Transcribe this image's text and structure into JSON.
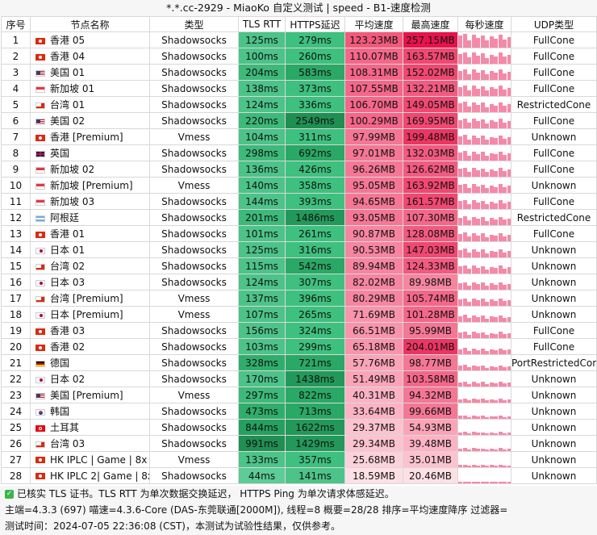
{
  "title": "*.*.cc-2929 - MiaoKo 自定义测试 | speed - B1-速度检测",
  "headers": [
    "序号",
    "节点名称",
    "类型",
    "TLS RTT",
    "HTTPS延迟",
    "平均速度",
    "最高速度",
    "每秒速度",
    "UDP类型"
  ],
  "rows": [
    {
      "idx": "1",
      "flag": "hk",
      "name": "香港 05",
      "type": "Shadowsocks",
      "tls": "125ms",
      "https": "279ms",
      "avg": "123.23MB",
      "max": "257.15MB",
      "udp": "FullCone",
      "tlsColor": "#4cc389",
      "httpsColor": "#3ec07f",
      "avgColor": "#f2597a",
      "maxColor": "#e8124c"
    },
    {
      "idx": "2",
      "flag": "hk",
      "name": "香港 04",
      "type": "Shadowsocks",
      "tls": "100ms",
      "https": "260ms",
      "avg": "110.07MB",
      "max": "163.57MB",
      "udp": "FullCone",
      "tlsColor": "#4cc389",
      "httpsColor": "#3ec07f",
      "avgColor": "#f4678a",
      "maxColor": "#f04872"
    },
    {
      "idx": "3",
      "flag": "us",
      "name": "美国 01",
      "type": "Shadowsocks",
      "tls": "204ms",
      "https": "583ms",
      "avg": "108.31MB",
      "max": "152.02MB",
      "udp": "FullCone",
      "tlsColor": "#3db97a",
      "httpsColor": "#2aa865",
      "avgColor": "#f4678a",
      "maxColor": "#f04872"
    },
    {
      "idx": "4",
      "flag": "sg",
      "name": "新加坡 01",
      "type": "Shadowsocks",
      "tls": "138ms",
      "https": "373ms",
      "avg": "107.55MB",
      "max": "132.21MB",
      "udp": "FullCone",
      "tlsColor": "#4cc389",
      "httpsColor": "#3ec07f",
      "avgColor": "#f4678a",
      "maxColor": "#f25a80"
    },
    {
      "idx": "5",
      "flag": "tw",
      "name": "台湾 01",
      "type": "Shadowsocks",
      "tls": "124ms",
      "https": "336ms",
      "avg": "106.70MB",
      "max": "149.05MB",
      "udp": "RestrictedCone",
      "tlsColor": "#4cc389",
      "httpsColor": "#3ec07f",
      "avgColor": "#f4678a",
      "maxColor": "#f04872"
    },
    {
      "idx": "6",
      "flag": "us",
      "name": "美国 02",
      "type": "Shadowsocks",
      "tls": "220ms",
      "https": "2549ms",
      "avg": "100.29MB",
      "max": "169.95MB",
      "udp": "FullCone",
      "tlsColor": "#3db97a",
      "httpsColor": "#1f8f52",
      "avgColor": "#f4678a",
      "maxColor": "#f04872"
    },
    {
      "idx": "7",
      "flag": "hk",
      "name": "香港 [Premium]",
      "type": "Vmess",
      "tls": "104ms",
      "https": "311ms",
      "avg": "97.99MB",
      "max": "199.48MB",
      "udp": "Unknown",
      "tlsColor": "#4cc389",
      "httpsColor": "#3ec07f",
      "avgColor": "#f47795",
      "maxColor": "#ec3562"
    },
    {
      "idx": "8",
      "flag": "gb",
      "name": "英国",
      "type": "Shadowsocks",
      "tls": "298ms",
      "https": "692ms",
      "avg": "97.01MB",
      "max": "132.03MB",
      "udp": "FullCone",
      "tlsColor": "#3db97a",
      "httpsColor": "#2aa865",
      "avgColor": "#f47795",
      "maxColor": "#f25a80"
    },
    {
      "idx": "9",
      "flag": "sg",
      "name": "新加坡 02",
      "type": "Shadowsocks",
      "tls": "136ms",
      "https": "426ms",
      "avg": "96.26MB",
      "max": "126.62MB",
      "udp": "FullCone",
      "tlsColor": "#4cc389",
      "httpsColor": "#3ec07f",
      "avgColor": "#f47795",
      "maxColor": "#f25a80"
    },
    {
      "idx": "10",
      "flag": "sg",
      "name": "新加坡 [Premium]",
      "type": "Vmess",
      "tls": "140ms",
      "https": "358ms",
      "avg": "95.05MB",
      "max": "163.92MB",
      "udp": "Unknown",
      "tlsColor": "#4cc389",
      "httpsColor": "#3ec07f",
      "avgColor": "#f47795",
      "maxColor": "#f04872"
    },
    {
      "idx": "11",
      "flag": "sg",
      "name": "新加坡 03",
      "type": "Shadowsocks",
      "tls": "144ms",
      "https": "393ms",
      "avg": "94.65MB",
      "max": "161.57MB",
      "udp": "FullCone",
      "tlsColor": "#4cc389",
      "httpsColor": "#3ec07f",
      "avgColor": "#f47795",
      "maxColor": "#f04872"
    },
    {
      "idx": "12",
      "flag": "ar",
      "name": "阿根廷",
      "type": "Shadowsocks",
      "tls": "201ms",
      "https": "1486ms",
      "avg": "93.05MB",
      "max": "107.30MB",
      "udp": "RestrictedCone",
      "tlsColor": "#3db97a",
      "httpsColor": "#22995a",
      "avgColor": "#f47795",
      "maxColor": "#f4678a"
    },
    {
      "idx": "13",
      "flag": "hk",
      "name": "香港 01",
      "type": "Shadowsocks",
      "tls": "101ms",
      "https": "261ms",
      "avg": "90.87MB",
      "max": "128.08MB",
      "udp": "FullCone",
      "tlsColor": "#4cc389",
      "httpsColor": "#3ec07f",
      "avgColor": "#f685a0",
      "maxColor": "#f25a80"
    },
    {
      "idx": "14",
      "flag": "jp",
      "name": "日本 01",
      "type": "Shadowsocks",
      "tls": "125ms",
      "https": "316ms",
      "avg": "90.53MB",
      "max": "147.03MB",
      "udp": "Unknown",
      "tlsColor": "#4cc389",
      "httpsColor": "#3ec07f",
      "avgColor": "#f685a0",
      "maxColor": "#f04872"
    },
    {
      "idx": "15",
      "flag": "tw",
      "name": "台湾 02",
      "type": "Shadowsocks",
      "tls": "115ms",
      "https": "542ms",
      "avg": "89.94MB",
      "max": "124.33MB",
      "udp": "Unknown",
      "tlsColor": "#4cc389",
      "httpsColor": "#2aa865",
      "avgColor": "#f685a0",
      "maxColor": "#f25a80"
    },
    {
      "idx": "16",
      "flag": "jp",
      "name": "日本 03",
      "type": "Shadowsocks",
      "tls": "124ms",
      "https": "307ms",
      "avg": "82.02MB",
      "max": "89.98MB",
      "udp": "Unknown",
      "tlsColor": "#4cc389",
      "httpsColor": "#3ec07f",
      "avgColor": "#f685a0",
      "maxColor": "#f685a0"
    },
    {
      "idx": "17",
      "flag": "tw",
      "name": "台湾 [Premium]",
      "type": "Vmess",
      "tls": "137ms",
      "https": "396ms",
      "avg": "80.29MB",
      "max": "105.74MB",
      "udp": "Unknown",
      "tlsColor": "#4cc389",
      "httpsColor": "#3ec07f",
      "avgColor": "#f685a0",
      "maxColor": "#f4678a"
    },
    {
      "idx": "18",
      "flag": "jp",
      "name": "日本 [Premium]",
      "type": "Vmess",
      "tls": "107ms",
      "https": "265ms",
      "avg": "71.69MB",
      "max": "101.28MB",
      "udp": "Unknown",
      "tlsColor": "#4cc389",
      "httpsColor": "#3ec07f",
      "avgColor": "#f894ab",
      "maxColor": "#f4678a"
    },
    {
      "idx": "19",
      "flag": "hk",
      "name": "香港 03",
      "type": "Shadowsocks",
      "tls": "156ms",
      "https": "324ms",
      "avg": "66.51MB",
      "max": "95.99MB",
      "udp": "FullCone",
      "tlsColor": "#4cc389",
      "httpsColor": "#3ec07f",
      "avgColor": "#f894ab",
      "maxColor": "#f47795"
    },
    {
      "idx": "20",
      "flag": "hk",
      "name": "香港 02",
      "type": "Shadowsocks",
      "tls": "103ms",
      "https": "299ms",
      "avg": "65.18MB",
      "max": "204.01MB",
      "udp": "FullCone",
      "tlsColor": "#4cc389",
      "httpsColor": "#3ec07f",
      "avgColor": "#f894ab",
      "maxColor": "#ec3562"
    },
    {
      "idx": "21",
      "flag": "de",
      "name": "德国",
      "type": "Shadowsocks",
      "tls": "328ms",
      "https": "721ms",
      "avg": "57.76MB",
      "max": "98.77MB",
      "udp": "PortRestrictedCone",
      "tlsColor": "#2fae6b",
      "httpsColor": "#2aa865",
      "avgColor": "#faa4b8",
      "maxColor": "#f47795"
    },
    {
      "idx": "22",
      "flag": "jp",
      "name": "日本 02",
      "type": "Shadowsocks",
      "tls": "170ms",
      "https": "1438ms",
      "avg": "51.49MB",
      "max": "103.58MB",
      "udp": "Unknown",
      "tlsColor": "#4cc389",
      "httpsColor": "#22995a",
      "avgColor": "#faa4b8",
      "maxColor": "#f4678a"
    },
    {
      "idx": "23",
      "flag": "us",
      "name": "美国 [Premium]",
      "type": "Vmess",
      "tls": "297ms",
      "https": "822ms",
      "avg": "40.31MB",
      "max": "94.32MB",
      "udp": "Unknown",
      "tlsColor": "#3db97a",
      "httpsColor": "#2aa865",
      "avgColor": "#fbb3c4",
      "maxColor": "#f47795"
    },
    {
      "idx": "24",
      "flag": "kr",
      "name": "韩国",
      "type": "Shadowsocks",
      "tls": "473ms",
      "https": "713ms",
      "avg": "33.64MB",
      "max": "99.66MB",
      "udp": "Unknown",
      "tlsColor": "#2fae6b",
      "httpsColor": "#2aa865",
      "avgColor": "#fbb3c4",
      "maxColor": "#f47795"
    },
    {
      "idx": "25",
      "flag": "tr",
      "name": "土耳其",
      "type": "Shadowsocks",
      "tls": "844ms",
      "https": "1622ms",
      "avg": "29.37MB",
      "max": "54.93MB",
      "udp": "Unknown",
      "tlsColor": "#25a060",
      "httpsColor": "#22995a",
      "avgColor": "#fcc2cf",
      "maxColor": "#faa4b8"
    },
    {
      "idx": "26",
      "flag": "tw",
      "name": "台湾 03",
      "type": "Shadowsocks",
      "tls": "991ms",
      "https": "1429ms",
      "avg": "29.34MB",
      "max": "39.48MB",
      "udp": "Unknown",
      "tlsColor": "#1f8f52",
      "httpsColor": "#22995a",
      "avgColor": "#fcc2cf",
      "maxColor": "#fbb3c4"
    },
    {
      "idx": "27",
      "flag": "hk",
      "name": "HK IPLC | Game | 8x",
      "type": "Vmess",
      "tls": "133ms",
      "https": "357ms",
      "avg": "25.68MB",
      "max": "35.01MB",
      "udp": "Unknown",
      "tlsColor": "#4cc389",
      "httpsColor": "#3ec07f",
      "avgColor": "#fdd1db",
      "maxColor": "#fcc2cf"
    },
    {
      "idx": "28",
      "flag": "hk",
      "name": "HK IPLC 2| Game | 8x",
      "type": "Shadowsocks",
      "tls": "44ms",
      "https": "141ms",
      "avg": "18.59MB",
      "max": "20.46MB",
      "udp": "Unknown",
      "tlsColor": "#5dcc96",
      "httpsColor": "#4cc389",
      "avgColor": "#fde0e6",
      "maxColor": "#fde0e6"
    }
  ],
  "spark_level": [
    0.9,
    0.75,
    0.7,
    0.7,
    0.68,
    0.65,
    0.62,
    0.62,
    0.6,
    0.6,
    0.6,
    0.58,
    0.56,
    0.56,
    0.55,
    0.5,
    0.5,
    0.45,
    0.42,
    0.4,
    0.36,
    0.33,
    0.27,
    0.22,
    0.2,
    0.2,
    0.17,
    0.12
  ],
  "footer": {
    "line1": "已核实 TLS 证书。TLS RTT 为单次数据交换延迟， HTTPS Ping 为单次请求体感延迟。",
    "line2": "主端=4.3.3 (697) 喵速=4.3.6-Core (DAS-东莞联通[2000M]), 线程=8 概要=28/28 排序=平均速度降序 过滤器=",
    "line3": "测试时间：2024-07-05 22:36:08 (CST)，本测试为试验性结果，仅供参考。"
  },
  "colors": {
    "bar": "#f48aa8"
  }
}
